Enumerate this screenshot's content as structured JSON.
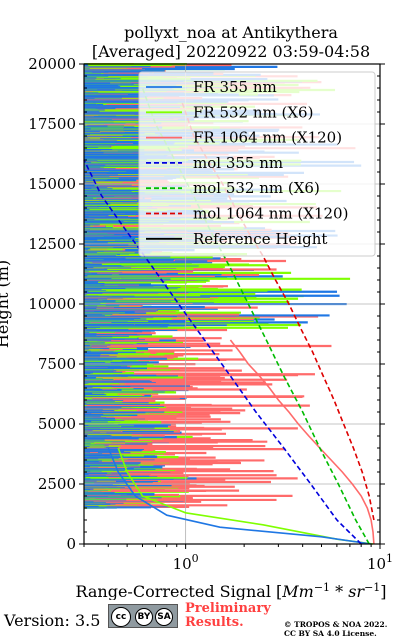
{
  "chart_data": {
    "type": "line",
    "title_line1": "pollyxt_noa at Antikythera",
    "title_line2": "[Averaged] 20220922 03:59-04:58",
    "xlabel_prefix": "Range-Corrected Signal [",
    "xlabel_unit": "Mm",
    "xlabel_exp1": "−1",
    "xlabel_mid": " * sr",
    "xlabel_exp2": "−1",
    "xlabel_suffix": "]",
    "ylabel": "Height (m)",
    "xscale": "log",
    "xlim": [
      0.3,
      10
    ],
    "ylim": [
      0,
      20000
    ],
    "x_tick_labels": [
      {
        "value": 1,
        "base": "10",
        "exp": "0"
      },
      {
        "value": 10,
        "base": "10",
        "exp": "1"
      }
    ],
    "y_ticks": [
      0,
      2500,
      5000,
      7500,
      10000,
      12500,
      15000,
      17500,
      20000
    ],
    "y_tick_labels": [
      "0",
      "2500",
      "5000",
      "7500",
      "10000",
      "12500",
      "15000",
      "17500",
      "20000"
    ],
    "grid": true,
    "legend_position": "upper-right",
    "legend": [
      {
        "label": "FR 355 nm",
        "color": "#1f77e4",
        "style": "solid"
      },
      {
        "label": "FR 532 nm (X6)",
        "color": "#7fff00",
        "style": "solid"
      },
      {
        "label": "FR 1064 nm (X120)",
        "color": "#ff6b6b",
        "style": "solid"
      },
      {
        "label": "mol 355 nm",
        "color": "#0000dd",
        "style": "dashed"
      },
      {
        "label": "mol 532 nm (X6)",
        "color": "#00bb00",
        "style": "dashed"
      },
      {
        "label": "mol 1064 nm (X120)",
        "color": "#dd0000",
        "style": "dashed"
      },
      {
        "label": "Reference Height",
        "color": "#000000",
        "style": "solid"
      }
    ],
    "series": [
      {
        "name": "FR 1064 nm (X120)",
        "color": "#ff6b6b",
        "x": [
          9.3,
          9.2,
          9.0,
          8.6,
          8.0,
          7.2,
          6.4,
          5.6,
          4.9,
          4.3,
          3.8,
          3.4,
          3.0,
          2.7,
          2.4,
          2.1,
          1.9,
          1.7
        ],
        "y": [
          0,
          500,
          1000,
          1500,
          2000,
          2500,
          3000,
          3500,
          4000,
          4500,
          5000,
          5500,
          6000,
          6500,
          7000,
          7500,
          8000,
          8500
        ]
      },
      {
        "name": "FR 532 nm (X6)",
        "color": "#7fff00",
        "x": [
          9.2,
          6.0,
          2.5,
          1.0,
          0.6,
          0.5,
          0.45
        ],
        "y": [
          0,
          200,
          800,
          1300,
          2000,
          3000,
          4000
        ]
      },
      {
        "name": "FR 355 nm",
        "color": "#1f77e4",
        "x": [
          9.0,
          5.0,
          1.5,
          0.8,
          0.55,
          0.45,
          0.4
        ],
        "y": [
          0,
          300,
          700,
          1200,
          2000,
          3000,
          4000
        ]
      },
      {
        "name": "mol 355 nm",
        "color": "#0000dd",
        "dashed": true,
        "x": [
          8.0,
          6.0,
          4.4,
          3.2,
          2.3,
          1.7,
          1.25,
          0.92,
          0.68,
          0.5,
          0.37,
          0.3
        ],
        "y": [
          0,
          1000,
          2500,
          4000,
          5500,
          7000,
          8500,
          10000,
          11500,
          13000,
          14500,
          16000
        ]
      },
      {
        "name": "mol 532 nm (X6)",
        "color": "#00bb00",
        "dashed": true,
        "x": [
          8.8,
          7.5,
          6.1,
          4.9,
          4.0,
          3.2,
          2.6,
          2.1,
          1.7,
          1.35,
          1.1,
          0.88,
          0.7,
          0.6
        ],
        "y": [
          0,
          1000,
          2500,
          4000,
          5500,
          7000,
          8500,
          10000,
          11500,
          13000,
          14500,
          16000,
          17500,
          19000
        ]
      },
      {
        "name": "mol 1064 nm (X120)",
        "color": "#dd0000",
        "dashed": true,
        "x": [
          9.3,
          8.8,
          8.1,
          7.3,
          6.5,
          5.8,
          5.1,
          4.5,
          3.9,
          3.4,
          2.9,
          2.5,
          2.1,
          1.8,
          1.55,
          1.3,
          1.1,
          0.95
        ],
        "y": [
          1000,
          2000,
          3000,
          4000,
          5000,
          6000,
          7000,
          8000,
          9000,
          10000,
          11000,
          12000,
          13000,
          14000,
          15000,
          16000,
          17000,
          18500
        ]
      }
    ]
  },
  "footer": {
    "version": "Version: 3.5",
    "badge_cc": "cc",
    "badge_by": "BY",
    "badge_sa": "SA",
    "preliminary_line1": "Preliminary",
    "preliminary_line2": "Results.",
    "copyright_line1": "© TROPOS & NOA 2022.",
    "copyright_line2": "CC BY SA 4.0 License."
  },
  "colors": {
    "fr355": "#1f77e4",
    "fr532": "#7fff00",
    "fr1064": "#ff6b6b",
    "grid": "#b0b0b0"
  }
}
